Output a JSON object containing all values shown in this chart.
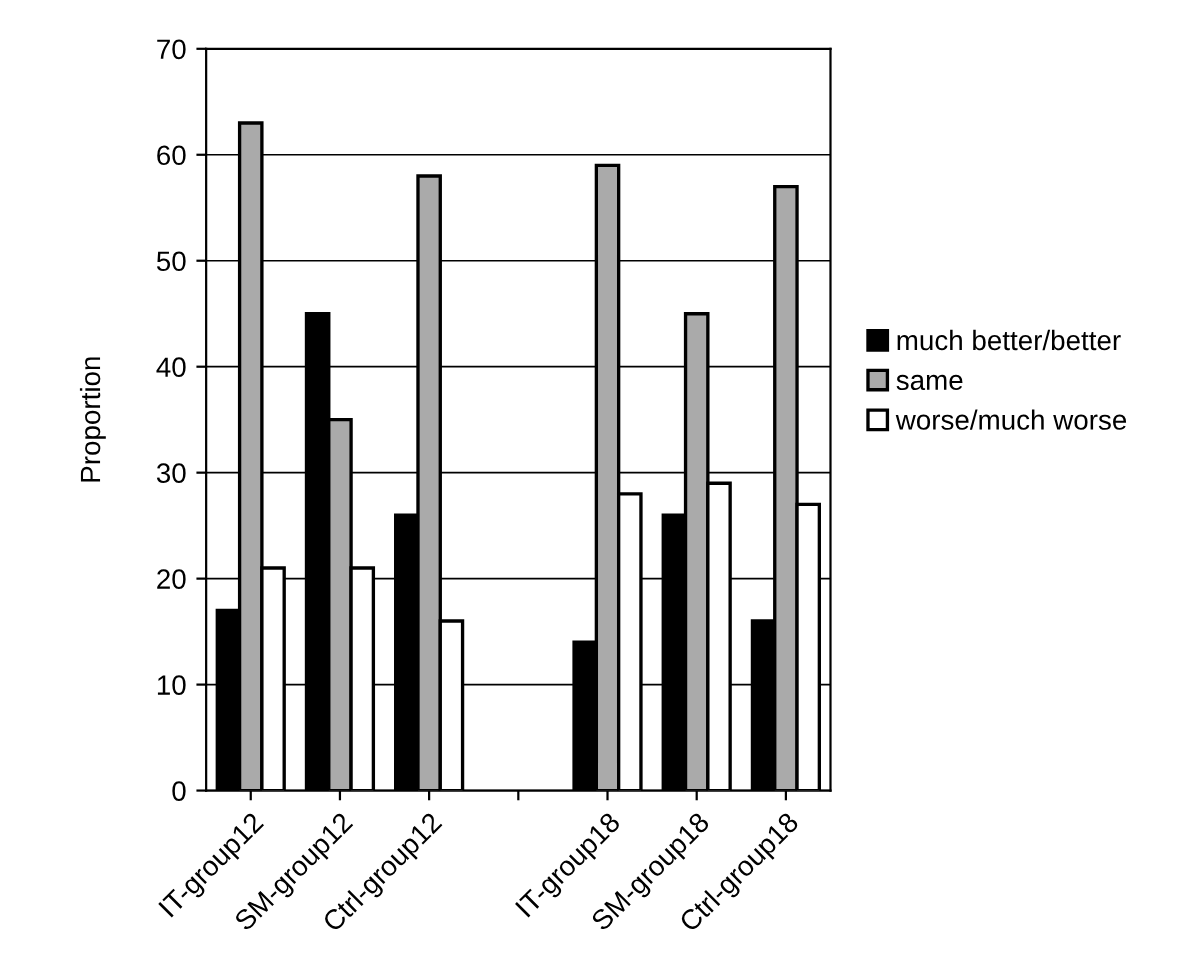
{
  "chart_data": {
    "type": "bar",
    "ylabel": "Proportion",
    "categories": [
      "IT-group12",
      "SM-group12",
      "Ctrl-group12",
      null,
      "IT-group18",
      "SM-group18",
      "Ctrl-group18"
    ],
    "series": [
      {
        "name": "much better/better",
        "color": "#000000",
        "values": [
          17,
          45,
          26,
          null,
          14,
          26,
          16
        ]
      },
      {
        "name": "same",
        "color": "#aaaaaa",
        "values": [
          63,
          35,
          58,
          null,
          59,
          45,
          57
        ]
      },
      {
        "name": "worse/much worse",
        "color": "#ffffff",
        "values": [
          21,
          21,
          16,
          null,
          28,
          29,
          27
        ]
      }
    ],
    "ylim": [
      0,
      70
    ],
    "yticks": [
      0,
      10,
      20,
      30,
      40,
      50,
      60,
      70
    ],
    "grid": "y",
    "legend": "right"
  }
}
